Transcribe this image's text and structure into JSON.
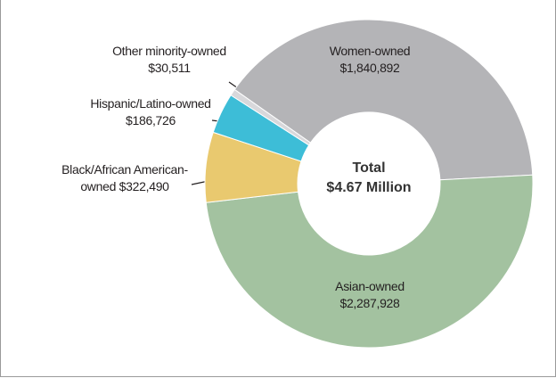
{
  "chart_data": {
    "type": "donut",
    "categories": [
      "Women-owned",
      "Asian-owned",
      "Black/African American-owned",
      "Hispanic/Latino-owned",
      "Other minority-owned"
    ],
    "values": [
      1840892,
      2287928,
      322490,
      186726,
      30511
    ],
    "value_labels": [
      "$1,840,892",
      "$2,287,928",
      "$322,490",
      "$186,726",
      "$30,511"
    ],
    "colors": [
      "#b4b4b7",
      "#a3c2a0",
      "#e9c96f",
      "#3dbdd7",
      "#d8d8db"
    ],
    "center_title": "Total",
    "center_value": "$4.67 Million"
  }
}
